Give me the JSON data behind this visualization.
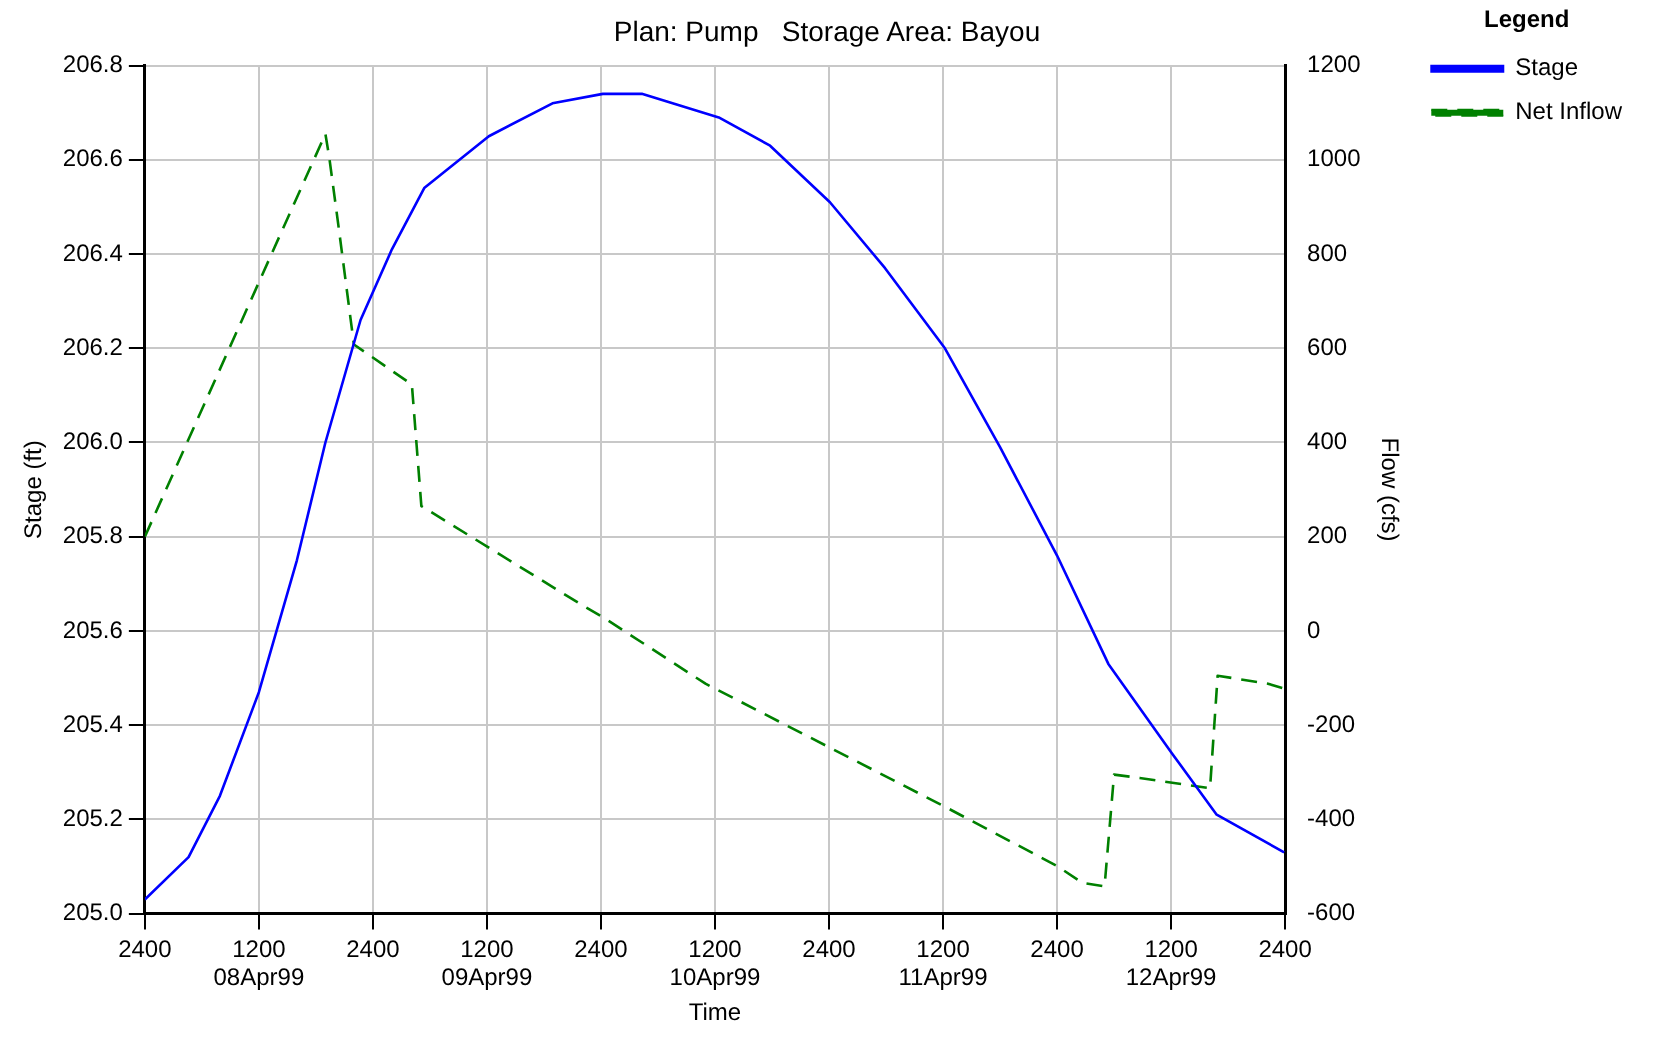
{
  "chart_data": {
    "type": "line",
    "title": "Plan: Pump   Storage Area: Bayou",
    "xlabel": "Time",
    "ylabel": "Stage (ft)",
    "y2label": "Flow (cfs)",
    "legend_title": "Legend",
    "legend": "top right",
    "grid": true,
    "marker": "none",
    "xlim": [
      "1999-04-08T00:00",
      "1999-04-13T00:00"
    ],
    "xticks": [
      {
        "value": "1999-04-08T00:00",
        "label": "2400"
      },
      {
        "value": "1999-04-08T12:00",
        "label": "1200\n08Apr99"
      },
      {
        "value": "1999-04-09T00:00",
        "label": "2400"
      },
      {
        "value": "1999-04-09T12:00",
        "label": "1200\n09Apr99"
      },
      {
        "value": "1999-04-10T00:00",
        "label": "2400"
      },
      {
        "value": "1999-04-10T12:00",
        "label": "1200\n10Apr99"
      },
      {
        "value": "1999-04-11T00:00",
        "label": "2400"
      },
      {
        "value": "1999-04-11T12:00",
        "label": "1200\n11Apr99"
      },
      {
        "value": "1999-04-12T00:00",
        "label": "2400"
      },
      {
        "value": "1999-04-12T12:00",
        "label": "1200\n12Apr99"
      },
      {
        "value": "1999-04-13T00:00",
        "label": "2400"
      }
    ],
    "ylim": [
      205.0,
      206.8
    ],
    "yticks": [
      {
        "value": 205.0,
        "label": "205.0"
      },
      {
        "value": 205.2,
        "label": "205.2"
      },
      {
        "value": 205.4,
        "label": "205.4"
      },
      {
        "value": 205.6,
        "label": "205.6"
      },
      {
        "value": 205.8,
        "label": "205.8"
      },
      {
        "value": 206.0,
        "label": "206.0"
      },
      {
        "value": 206.2,
        "label": "206.2"
      },
      {
        "value": 206.4,
        "label": "206.4"
      },
      {
        "value": 206.6,
        "label": "206.6"
      },
      {
        "value": 206.8,
        "label": "206.8"
      }
    ],
    "y2lim": [
      -600,
      1200
    ],
    "y2ticks": [
      -600,
      -400,
      -200,
      0,
      200,
      400,
      600,
      800,
      1000,
      1200
    ],
    "series": [
      {
        "name": "Stage",
        "color": "#0000ff",
        "line_style": "solid",
        "x": [
          "1999-04-08T00:00",
          "1999-04-08T04:36",
          "1999-04-08T07:54",
          "1999-04-08T12:00",
          "1999-04-08T16:00",
          "1999-04-08T19:00",
          "1999-04-08T22:42",
          "1999-04-09T02:00",
          "1999-04-09T05:24",
          "1999-04-09T12:12",
          "1999-04-09T18:54",
          "1999-04-10T00:12",
          "1999-04-10T04:18",
          "1999-04-10T12:24",
          "1999-04-10T17:48",
          "1999-04-11T00:06",
          "1999-04-11T05:54",
          "1999-04-11T12:12",
          "1999-04-11T18:00",
          "1999-04-12T00:00",
          "1999-04-12T05:24",
          "1999-04-12T12:06",
          "1999-04-12T16:48",
          "1999-04-12T23:54"
        ],
        "values": [
          205.03,
          205.12,
          205.25,
          205.47,
          205.75,
          206.0,
          206.26,
          206.41,
          206.54,
          206.65,
          206.72,
          206.74,
          206.74,
          206.69,
          206.63,
          206.51,
          206.37,
          206.2,
          205.99,
          205.76,
          205.53,
          205.34,
          205.21,
          205.13
        ]
      },
      {
        "name": "Net Inflow",
        "color": "#008000",
        "line_style": "dashed",
        "axis": "y2",
        "x": [
          "1999-04-08T00:00",
          "1999-04-08T19:00",
          "1999-04-08T19:24",
          "1999-04-08T20:24",
          "1999-04-08T22:00",
          "1999-04-09T04:06",
          "1999-04-09T05:06",
          "1999-04-09T21:36",
          "1999-04-10T00:18",
          "1999-04-10T11:00",
          "1999-04-11T00:30",
          "1999-04-11T11:54",
          "1999-04-12T00:00",
          "1999-04-12T02:42",
          "1999-04-12T05:00",
          "1999-04-12T06:00",
          "1999-04-12T08:42",
          "1999-04-12T16:06",
          "1999-04-12T16:54",
          "1999-04-12T22:12",
          "1999-04-13T00:00"
        ],
        "values": [
          200,
          1055,
          1006,
          856,
          608,
          523,
          265,
          60,
          28,
          -112,
          -252,
          -370,
          -499,
          -535,
          -542,
          -305,
          -312,
          -334,
          -95,
          -112,
          -123
        ]
      }
    ]
  }
}
